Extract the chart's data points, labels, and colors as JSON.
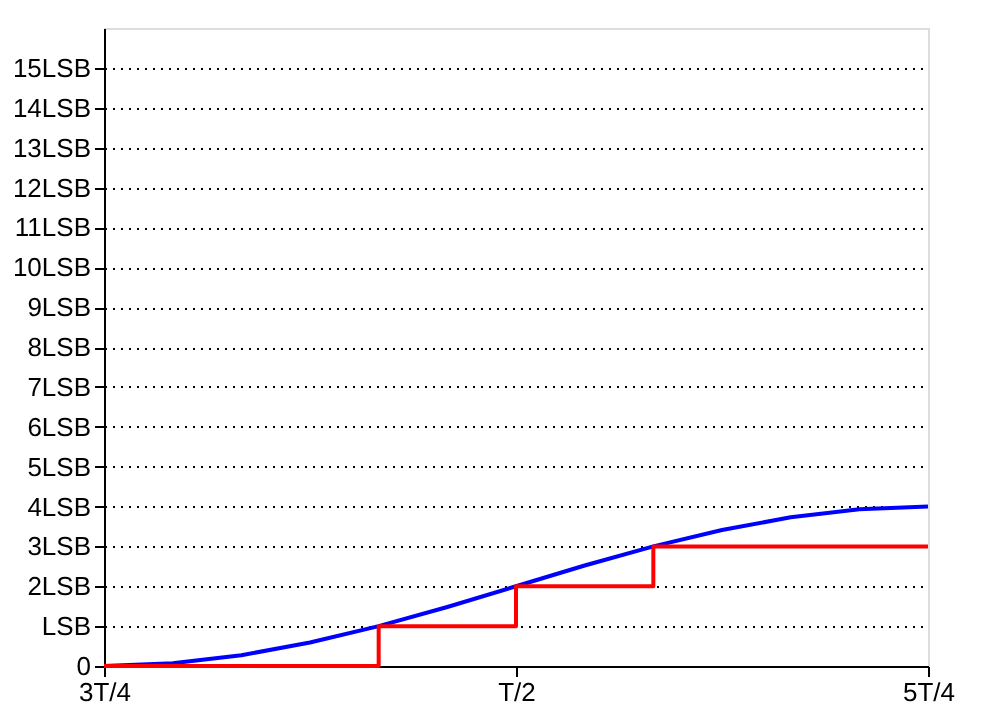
{
  "chart_data": {
    "type": "line",
    "categories": [
      "3T/4",
      null,
      null,
      null,
      null,
      null,
      "T/2",
      null,
      null,
      null,
      null,
      null,
      "5T/4"
    ],
    "ylim": [
      0,
      16
    ],
    "yticks": [
      0,
      {
        "value": 1,
        "label": "LSB"
      },
      {
        "value": 2,
        "label": "2LSB"
      },
      {
        "value": 3,
        "label": "3LSB"
      },
      {
        "value": 4,
        "label": "4LSB"
      },
      {
        "value": 5,
        "label": "5LSB"
      },
      {
        "value": 6,
        "label": "6LSB"
      },
      {
        "value": 7,
        "label": "7LSB"
      },
      {
        "value": 8,
        "label": "8LSB"
      },
      {
        "value": 9,
        "label": "9LSB"
      },
      {
        "value": 10,
        "label": "10LSB"
      },
      {
        "value": 11,
        "label": "11LSB"
      },
      {
        "value": 12,
        "label": "12LSB"
      },
      {
        "value": 13,
        "label": "13LSB"
      },
      {
        "value": 14,
        "label": "14LSB"
      },
      {
        "value": 15,
        "label": "15LSB"
      }
    ],
    "grid": "y",
    "line_style": "solid",
    "series": [
      {
        "color": "#0000ff",
        "values": [
          0,
          0.07,
          0.27,
          0.59,
          1,
          1.48,
          2,
          2.52,
          3,
          3.41,
          3.73,
          3.93,
          4
        ]
      },
      {
        "type": "step",
        "color": "#ff0000",
        "values": [
          0,
          0,
          0,
          0,
          1,
          1,
          2,
          2,
          3,
          3,
          3,
          3,
          3
        ]
      }
    ]
  }
}
